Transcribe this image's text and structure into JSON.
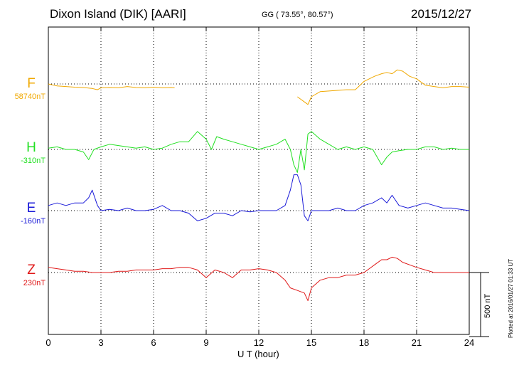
{
  "header": {
    "title": "Dixon Island (DIK)  [AARI]",
    "coords": "GG ( 73.55°,  80.57°)",
    "date": "2015/12/27"
  },
  "side_note": {
    "plotted": "Plotted at 2016/01/27 01:33 UT",
    "scale": "500 nT"
  },
  "chart_data": {
    "type": "line",
    "title": "Dixon Island (DIK)  [AARI]",
    "xlabel": "U T (hour)",
    "xlim": [
      0,
      24
    ],
    "xticks": [
      "0",
      "3",
      "6",
      "9",
      "12",
      "15",
      "18",
      "21",
      "24"
    ],
    "scale_bar_nT": 500,
    "grid": true,
    "series": [
      {
        "name": "F",
        "baseline": "58740nT",
        "color": "#f0a800",
        "x": [
          0,
          0.5,
          1,
          1.5,
          2,
          2.5,
          2.8,
          3,
          3.5,
          4,
          4.5,
          5,
          5.5,
          6,
          6.5,
          7,
          7.2,
          null,
          14.2,
          14.4,
          14.6,
          14.8,
          15,
          15.5,
          16,
          16.5,
          17,
          17.5,
          18,
          18.3,
          18.6,
          19,
          19.3,
          19.6,
          19.9,
          20.2,
          20.6,
          21,
          21.5,
          22,
          22.5,
          23,
          23.5,
          24
        ],
        "y": [
          0,
          -15,
          -20,
          -25,
          -28,
          -35,
          -45,
          -30,
          -28,
          -30,
          -20,
          -28,
          -30,
          -25,
          -30,
          -28,
          -30,
          null,
          -100,
          -120,
          -140,
          -160,
          -100,
          -60,
          -55,
          -50,
          -45,
          -45,
          20,
          40,
          60,
          80,
          90,
          80,
          110,
          100,
          60,
          40,
          -10,
          -20,
          -30,
          -20,
          -20,
          -25
        ]
      },
      {
        "name": "H",
        "baseline": "-310nT",
        "color": "#22e022",
        "x": [
          0,
          0.5,
          1,
          1.5,
          2,
          2.3,
          2.6,
          3,
          3.5,
          4,
          4.5,
          5,
          5.5,
          6,
          6.5,
          7,
          7.5,
          8,
          8.5,
          9,
          9.3,
          9.6,
          10,
          10.5,
          11,
          11.5,
          12,
          12.5,
          13,
          13.5,
          13.8,
          14,
          14.2,
          14.4,
          14.6,
          14.8,
          15,
          15.5,
          16,
          16.5,
          17,
          17.5,
          18,
          18.5,
          19,
          19.3,
          19.6,
          20,
          20.5,
          21,
          21.5,
          22,
          22.5,
          23,
          23.5,
          24
        ],
        "y": [
          10,
          20,
          0,
          0,
          -20,
          -80,
          0,
          20,
          40,
          30,
          20,
          10,
          20,
          0,
          10,
          40,
          60,
          60,
          140,
          80,
          0,
          100,
          80,
          60,
          40,
          20,
          0,
          20,
          40,
          80,
          0,
          -120,
          -180,
          0,
          -160,
          120,
          140,
          80,
          40,
          0,
          20,
          0,
          20,
          0,
          -120,
          -60,
          -20,
          -10,
          0,
          0,
          20,
          20,
          0,
          10,
          0,
          0
        ]
      },
      {
        "name": "E",
        "baseline": "-160nT",
        "color": "#1a1ad8",
        "x": [
          0,
          0.5,
          1,
          1.5,
          2,
          2.3,
          2.5,
          2.8,
          3,
          3.5,
          4,
          4.5,
          5,
          5.5,
          6,
          6.5,
          7,
          7.5,
          8,
          8.5,
          9,
          9.5,
          10,
          10.5,
          11,
          11.5,
          12,
          12.5,
          13,
          13.5,
          13.8,
          14,
          14.2,
          14.4,
          14.6,
          14.8,
          15,
          15.5,
          16,
          16.5,
          17,
          17.5,
          18,
          18.5,
          19,
          19.3,
          19.6,
          20,
          20.5,
          21,
          21.5,
          22,
          22.5,
          23,
          23.5,
          24
        ],
        "y": [
          40,
          60,
          40,
          60,
          60,
          100,
          160,
          40,
          0,
          10,
          0,
          20,
          0,
          0,
          10,
          40,
          0,
          0,
          -20,
          -80,
          -60,
          -20,
          -20,
          -40,
          0,
          -10,
          0,
          0,
          0,
          40,
          160,
          280,
          280,
          200,
          -40,
          -80,
          0,
          0,
          0,
          20,
          0,
          0,
          40,
          60,
          100,
          60,
          120,
          40,
          20,
          40,
          60,
          40,
          20,
          20,
          10,
          0
        ]
      },
      {
        "name": "Z",
        "baseline": "230nT",
        "color": "#e01818",
        "x": [
          0,
          0.5,
          1,
          1.5,
          2,
          2.5,
          3,
          3.5,
          4,
          4.5,
          5,
          5.5,
          6,
          6.5,
          7,
          7.5,
          8,
          8.5,
          9,
          9.5,
          10,
          10.5,
          11,
          11.5,
          12,
          12.5,
          13,
          13.5,
          13.8,
          14.2,
          14.6,
          14.8,
          15,
          15.5,
          16,
          16.5,
          17,
          17.5,
          18,
          18.3,
          18.6,
          19,
          19.3,
          19.6,
          19.9,
          20.2,
          20.6,
          21,
          21.5,
          22,
          22.5,
          23,
          23.5,
          24
        ],
        "y": [
          40,
          30,
          20,
          10,
          10,
          0,
          0,
          0,
          10,
          10,
          20,
          20,
          20,
          30,
          30,
          40,
          40,
          20,
          -40,
          20,
          0,
          -40,
          20,
          20,
          30,
          20,
          0,
          -60,
          -120,
          -140,
          -160,
          -220,
          -120,
          -60,
          -40,
          -40,
          -20,
          -20,
          0,
          30,
          60,
          100,
          100,
          120,
          110,
          80,
          60,
          40,
          20,
          0,
          0,
          0,
          0,
          0
        ]
      }
    ]
  }
}
